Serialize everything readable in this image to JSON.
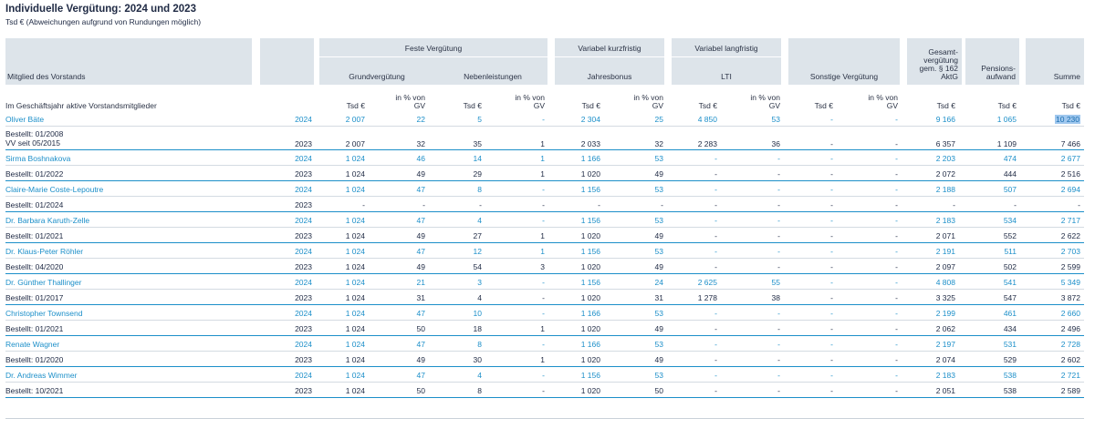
{
  "title": "Individuelle Vergütung: 2024 und 2023",
  "subtitle": "Tsd € (Abweichungen aufgrund von Rundungen möglich)",
  "header": {
    "member_col": "Mitglied des Vorstands",
    "feste": "Feste Vergütung",
    "grund": "Grundvergütung",
    "neben": "Nebenleistungen",
    "var_kurz": "Variabel kurzfristig",
    "jahresbonus": "Jahresbonus",
    "var_lang": "Variabel langfristig",
    "lti": "LTI",
    "sonstige": "Sonstige Vergütung",
    "gesamt": "Gesamt- vergütung gem. § 162 AktG",
    "pension": "Pensions- aufwand",
    "summe": "Summe"
  },
  "unit_row": {
    "label": "Im Geschäftsjahr aktive Vorstandsmitglieder",
    "tsd": "Tsd €",
    "pct": "in % von GV"
  },
  "rows": [
    {
      "kind": "member",
      "name": "Oliver Bäte",
      "year": "2024",
      "v": [
        "2 007",
        "22",
        "5",
        "-",
        "2 304",
        "25",
        "4 850",
        "53",
        "-",
        "-",
        "9 166",
        "1 065",
        "10 230"
      ],
      "highlight_last": true
    },
    {
      "kind": "prev",
      "name": "Bestellt: 01/2008\nVV seit 05/2015",
      "year": "2023",
      "v": [
        "2 007",
        "32",
        "35",
        "1",
        "2 033",
        "32",
        "2 283",
        "36",
        "-",
        "-",
        "6 357",
        "1 109",
        "7 466"
      ]
    },
    {
      "kind": "member",
      "name": "Sirma Boshnakova",
      "year": "2024",
      "v": [
        "1 024",
        "46",
        "14",
        "1",
        "1 166",
        "53",
        "-",
        "-",
        "-",
        "-",
        "2 203",
        "474",
        "2 677"
      ]
    },
    {
      "kind": "prev",
      "name": "Bestellt: 01/2022",
      "year": "2023",
      "v": [
        "1 024",
        "49",
        "29",
        "1",
        "1 020",
        "49",
        "-",
        "-",
        "-",
        "-",
        "2 072",
        "444",
        "2 516"
      ]
    },
    {
      "kind": "member",
      "name": "Claire-Marie Coste-Lepoutre",
      "year": "2024",
      "v": [
        "1 024",
        "47",
        "8",
        "-",
        "1 156",
        "53",
        "-",
        "-",
        "-",
        "-",
        "2 188",
        "507",
        "2 694"
      ]
    },
    {
      "kind": "prev",
      "name": "Bestellt: 01/2024",
      "year": "2023",
      "v": [
        "-",
        "-",
        "-",
        "-",
        "-",
        "-",
        "-",
        "-",
        "-",
        "-",
        "-",
        "-",
        "-"
      ]
    },
    {
      "kind": "member",
      "name": "Dr. Barbara Karuth-Zelle",
      "year": "2024",
      "v": [
        "1 024",
        "47",
        "4",
        "-",
        "1 156",
        "53",
        "-",
        "-",
        "-",
        "-",
        "2 183",
        "534",
        "2 717"
      ]
    },
    {
      "kind": "prev",
      "name": "Bestellt: 01/2021",
      "year": "2023",
      "v": [
        "1 024",
        "49",
        "27",
        "1",
        "1 020",
        "49",
        "-",
        "-",
        "-",
        "-",
        "2 071",
        "552",
        "2 622"
      ]
    },
    {
      "kind": "member",
      "name": "Dr. Klaus-Peter Röhler",
      "year": "2024",
      "v": [
        "1 024",
        "47",
        "12",
        "1",
        "1 156",
        "53",
        "-",
        "-",
        "-",
        "-",
        "2 191",
        "511",
        "2 703"
      ]
    },
    {
      "kind": "prev",
      "name": "Bestellt: 04/2020",
      "year": "2023",
      "v": [
        "1 024",
        "49",
        "54",
        "3",
        "1 020",
        "49",
        "-",
        "-",
        "-",
        "-",
        "2 097",
        "502",
        "2 599"
      ]
    },
    {
      "kind": "member",
      "name": "Dr. Günther Thallinger",
      "year": "2024",
      "v": [
        "1 024",
        "21",
        "3",
        "-",
        "1 156",
        "24",
        "2 625",
        "55",
        "-",
        "-",
        "4 808",
        "541",
        "5 349"
      ]
    },
    {
      "kind": "prev",
      "name": "Bestellt: 01/2017",
      "year": "2023",
      "v": [
        "1 024",
        "31",
        "4",
        "-",
        "1 020",
        "31",
        "1 278",
        "38",
        "-",
        "-",
        "3 325",
        "547",
        "3 872"
      ]
    },
    {
      "kind": "member",
      "name": "Christopher Townsend",
      "year": "2024",
      "v": [
        "1 024",
        "47",
        "10",
        "-",
        "1 166",
        "53",
        "-",
        "-",
        "-",
        "-",
        "2 199",
        "461",
        "2 660"
      ]
    },
    {
      "kind": "prev",
      "name": "Bestellt: 01/2021",
      "year": "2023",
      "v": [
        "1 024",
        "50",
        "18",
        "1",
        "1 020",
        "49",
        "-",
        "-",
        "-",
        "-",
        "2 062",
        "434",
        "2 496"
      ]
    },
    {
      "kind": "member",
      "name": "Renate Wagner",
      "year": "2024",
      "v": [
        "1 024",
        "47",
        "8",
        "-",
        "1 166",
        "53",
        "-",
        "-",
        "-",
        "-",
        "2 197",
        "531",
        "2 728"
      ]
    },
    {
      "kind": "prev",
      "name": "Bestellt: 01/2020",
      "year": "2023",
      "v": [
        "1 024",
        "49",
        "30",
        "1",
        "1 020",
        "49",
        "-",
        "-",
        "-",
        "-",
        "2 074",
        "529",
        "2 602"
      ]
    },
    {
      "kind": "member",
      "name": "Dr. Andreas Wimmer",
      "year": "2024",
      "v": [
        "1 024",
        "47",
        "4",
        "-",
        "1 156",
        "53",
        "-",
        "-",
        "-",
        "-",
        "2 183",
        "538",
        "2 721"
      ]
    },
    {
      "kind": "prev",
      "name": "Bestellt: 10/2021",
      "year": "2023",
      "v": [
        "1 024",
        "50",
        "8",
        "-",
        "1 020",
        "50",
        "-",
        "-",
        "-",
        "-",
        "2 051",
        "538",
        "2 589"
      ]
    }
  ]
}
